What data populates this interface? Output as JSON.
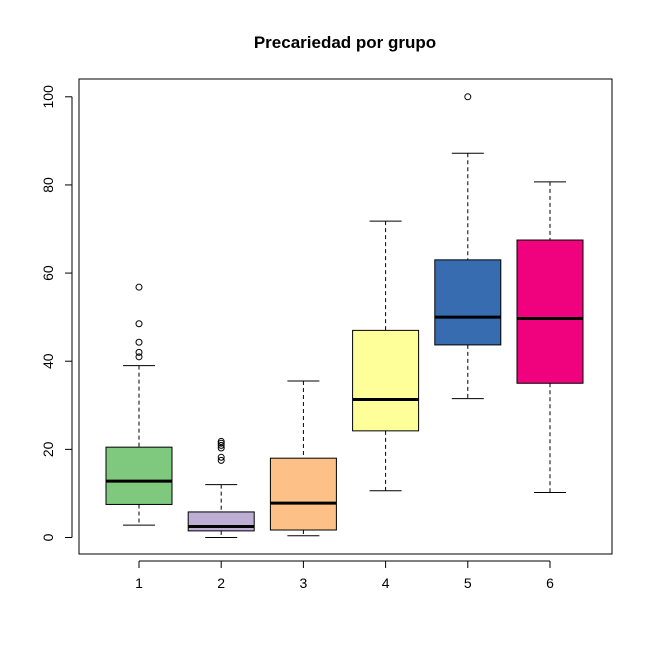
{
  "chart_data": {
    "type": "boxplot",
    "title": "Precariedad por grupo",
    "xlabel": "",
    "ylabel": "",
    "ylim": [
      -4,
      104
    ],
    "y_ticks": [
      0,
      20,
      40,
      60,
      80,
      100
    ],
    "categories": [
      "1",
      "2",
      "3",
      "4",
      "5",
      "6"
    ],
    "boxes": [
      {
        "category": "1",
        "whisker_low": 2.8,
        "q1": 7.5,
        "median": 12.8,
        "q3": 20.5,
        "whisker_high": 39.0,
        "outliers": [
          41.0,
          42.0,
          44.3,
          48.5,
          56.8
        ],
        "color": "#7fc97f"
      },
      {
        "category": "2",
        "whisker_low": 0.0,
        "q1": 1.5,
        "median": 2.5,
        "q3": 5.8,
        "whisker_high": 12.0,
        "outliers": [
          17.5,
          18.2,
          20.3,
          20.9,
          21.4,
          21.8
        ],
        "color": "#beaed4"
      },
      {
        "category": "3",
        "whisker_low": 0.4,
        "q1": 1.7,
        "median": 7.8,
        "q3": 18.0,
        "whisker_high": 35.5,
        "outliers": [],
        "color": "#fdc086"
      },
      {
        "category": "4",
        "whisker_low": 10.6,
        "q1": 24.2,
        "median": 31.3,
        "q3": 47.0,
        "whisker_high": 71.8,
        "outliers": [],
        "color": "#ffff99"
      },
      {
        "category": "5",
        "whisker_low": 31.5,
        "q1": 43.7,
        "median": 50.0,
        "q3": 63.0,
        "whisker_high": 87.2,
        "outliers": [
          100.0
        ],
        "color": "#386cb0"
      },
      {
        "category": "6",
        "whisker_low": 10.2,
        "q1": 35.0,
        "median": 49.7,
        "q3": 67.5,
        "whisker_high": 80.7,
        "outliers": [],
        "color": "#f0027f"
      }
    ]
  }
}
